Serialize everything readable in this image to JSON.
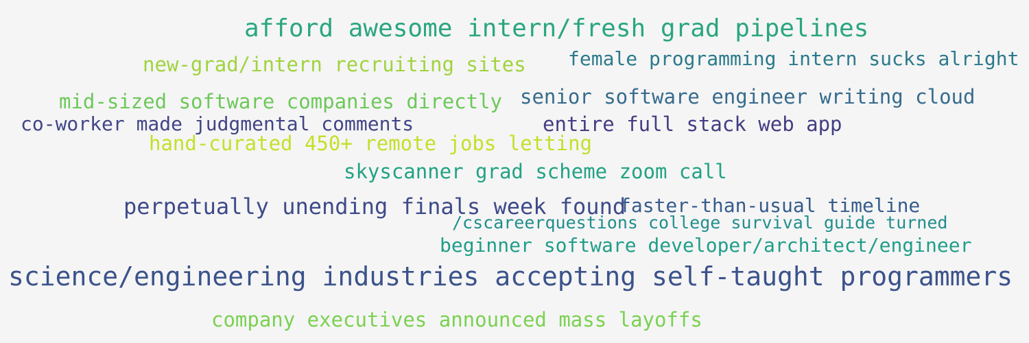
{
  "background": "#f5f5f5",
  "words": [
    {
      "text": "afford awesome intern/fresh grad pipelines",
      "color": "#2aa680"
    },
    {
      "text": "new-grad/intern recruiting sites",
      "color": "#a0d33f"
    },
    {
      "text": "female programming intern sucks alright",
      "color": "#2b7a8c"
    },
    {
      "text": "mid-sized software companies directly",
      "color": "#6cc859"
    },
    {
      "text": "senior software engineer writing cloud",
      "color": "#356b8d"
    },
    {
      "text": "co-worker made judgmental comments",
      "color": "#414587"
    },
    {
      "text": "entire full stack web app",
      "color": "#433d84"
    },
    {
      "text": "hand-curated 450+ remote jobs letting",
      "color": "#c5df2a"
    },
    {
      "text": "skyscanner grad scheme zoom call",
      "color": "#22a284"
    },
    {
      "text": "perpetually unending finals week found",
      "color": "#3e4a89"
    },
    {
      "text": "faster-than-usual timeline",
      "color": "#375c8c"
    },
    {
      "text": "/cscareerquestions college survival guide turned",
      "color": "#218e8d"
    },
    {
      "text": "beginner software developer/architect/engineer",
      "color": "#1f9e89"
    },
    {
      "text": "science/engineering industries accepting self-taught programmers",
      "color": "#3b528b"
    },
    {
      "text": "company executives announced mass layoffs",
      "color": "#7ad151"
    }
  ]
}
